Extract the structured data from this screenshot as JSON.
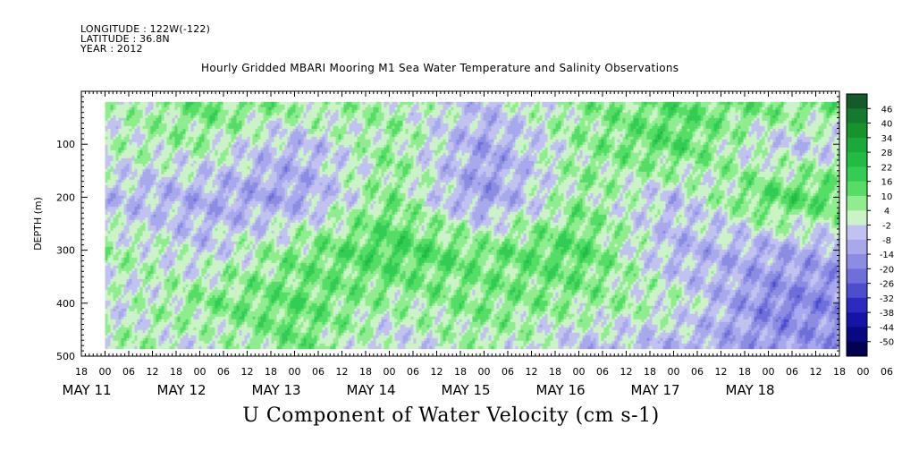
{
  "header": {
    "longitude": "LONGITUDE : 122W(-122)",
    "latitude": "LATITUDE : 36.8N",
    "year": "YEAR : 2012"
  },
  "title": "Hourly Gridded MBARI Mooring M1 Sea Water Temperature and Salinity Observations",
  "footer_title": "U Component of Water Velocity (cm s-1)",
  "chart_data": {
    "type": "heatmap",
    "title": "Hourly Gridded MBARI Mooring M1 Sea Water Temperature and Salinity Observations",
    "xlabel": "",
    "ylabel": "DEPTH (m)",
    "variable": "U Component of Water Velocity (cm s-1)",
    "y_axis": {
      "ticks": [
        100,
        200,
        300,
        400,
        500
      ],
      "range": [
        0,
        500
      ],
      "inverted": true
    },
    "x_axis": {
      "start": "2012-05-10T18:00",
      "end": "2012-05-18T18:00",
      "hour_ticks": [
        "18",
        "00",
        "06",
        "12",
        "18",
        "00",
        "06",
        "12",
        "18",
        "00",
        "06",
        "12",
        "18",
        "00",
        "06",
        "12",
        "18",
        "00",
        "06",
        "12",
        "18",
        "00",
        "06",
        "12",
        "18",
        "00",
        "06",
        "12",
        "18",
        "00",
        "06",
        "12",
        "18",
        "00",
        "06",
        "12",
        "18",
        "00",
        "06",
        "12",
        "18",
        "00",
        "06",
        "12",
        "18"
      ],
      "day_labels": [
        "MAY 11",
        "MAY 12",
        "MAY 13",
        "MAY 14",
        "MAY 15",
        "MAY 16",
        "MAY 17",
        "MAY 18"
      ]
    },
    "data_extent": {
      "time_start": "2012-05-11T00:00",
      "time_end": "2012-05-18T18:00",
      "depth_top": 20,
      "depth_bottom": 485
    },
    "colorbar": {
      "levels": [
        46,
        40,
        34,
        28,
        22,
        16,
        10,
        4,
        -2,
        -8,
        -14,
        -20,
        -26,
        -32,
        -38,
        -44,
        -50
      ],
      "colors": [
        "#145a2a",
        "#147a30",
        "#17932c",
        "#1aa93a",
        "#22bb44",
        "#33cc55",
        "#55dd66",
        "#8fec8f",
        "#ccf3c8",
        "#c2c2f0",
        "#a8a8ec",
        "#8c8ce2",
        "#6f6fdb",
        "#4d4dd0",
        "#2b2bc0",
        "#1414a6",
        "#080880",
        "#020250"
      ]
    },
    "u_velocity_by_depth_time": [
      {
        "depth": 30,
        "values_by_day": {
          "May 11": 0,
          "May 12": 10,
          "May 13": 5,
          "May 14": 4,
          "May 15": -6,
          "May 16": 6,
          "May 17": 12,
          "May 18": 8
        }
      },
      {
        "depth": 100,
        "values_by_day": {
          "May 11": 2,
          "May 12": 4,
          "May 13": -8,
          "May 14": 6,
          "May 15": -12,
          "May 16": 5,
          "May 17": 14,
          "May 18": -4
        }
      },
      {
        "depth": 200,
        "values_by_day": {
          "May 11": -6,
          "May 12": -10,
          "May 13": -12,
          "May 14": 8,
          "May 15": -14,
          "May 16": 6,
          "May 17": -6,
          "May 18": 14
        }
      },
      {
        "depth": 300,
        "values_by_day": {
          "May 11": 6,
          "May 12": -4,
          "May 13": 8,
          "May 14": 16,
          "May 15": 10,
          "May 16": 14,
          "May 17": -8,
          "May 18": -10
        }
      },
      {
        "depth": 400,
        "values_by_day": {
          "May 11": -4,
          "May 12": 8,
          "May 13": 12,
          "May 14": 4,
          "May 15": 8,
          "May 16": 6,
          "May 17": 2,
          "May 18": -18
        }
      },
      {
        "depth": 480,
        "values_by_day": {
          "May 11": 6,
          "May 12": -2,
          "May 13": 10,
          "May 14": -4,
          "May 15": 4,
          "May 16": -6,
          "May 17": -8,
          "May 18": -14
        }
      }
    ]
  }
}
